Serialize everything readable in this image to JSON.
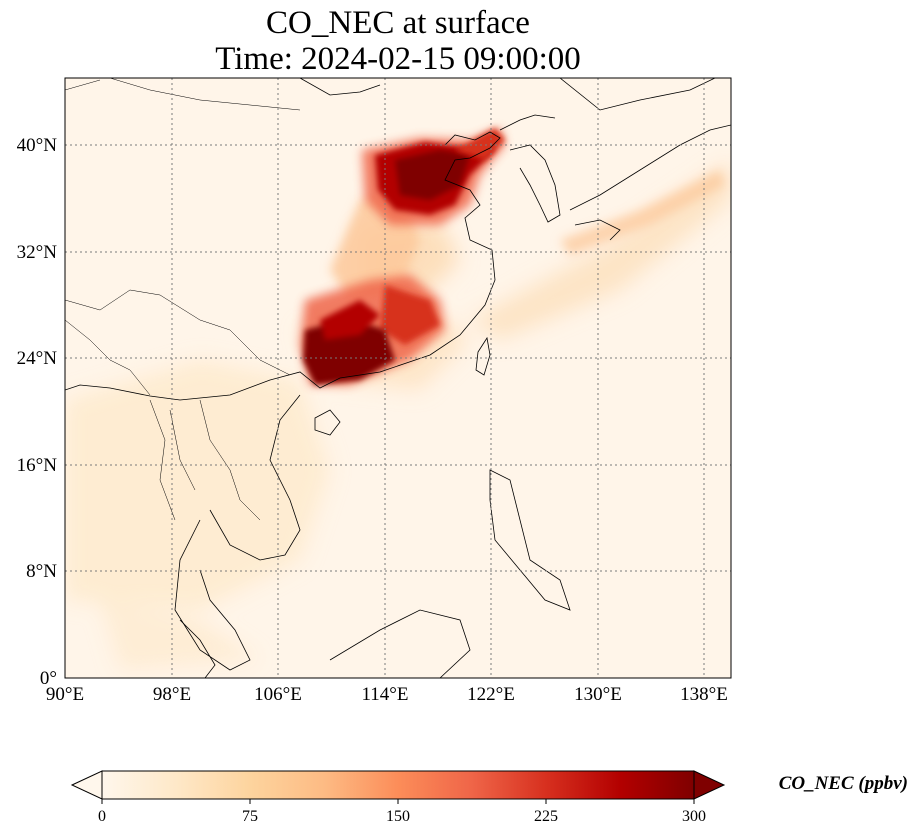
{
  "title": {
    "line1": "CO_NEC at surface",
    "line2": "Time: 2024-02-15 09:00:00"
  },
  "map": {
    "lon_ticks": [
      "90°E",
      "98°E",
      "106°E",
      "114°E",
      "122°E",
      "130°E",
      "138°E"
    ],
    "lat_ticks": [
      "40°N",
      "32°N",
      "24°N",
      "16°N",
      "8°N",
      "0°"
    ],
    "lon_range": [
      90,
      140
    ],
    "lat_range": [
      0,
      45
    ],
    "gridlines": true,
    "colormap": "OrRd",
    "hotspots": [
      {
        "region": "North China Plain",
        "level": "300+"
      },
      {
        "region": "South China (Guangxi/Guangdong)",
        "level": "300+"
      }
    ]
  },
  "colorbar": {
    "ticks": [
      "0",
      "75",
      "150",
      "225",
      "300"
    ],
    "min": 0,
    "max": 300,
    "extend": "both",
    "label": "CO_NEC (ppbv)",
    "colors": [
      "#fff7ec",
      "#fee8c8",
      "#fdd49e",
      "#fdbb84",
      "#fc8d59",
      "#ef6548",
      "#d7301f",
      "#b30000",
      "#7f0000"
    ]
  }
}
